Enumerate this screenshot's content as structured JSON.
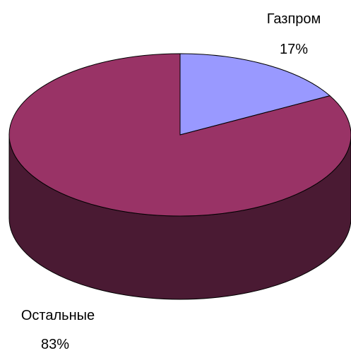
{
  "chart_data": {
    "type": "pie",
    "title": "",
    "slices": [
      {
        "name": "Газпром",
        "value": 17,
        "label": "17%",
        "color": "#9999ff"
      },
      {
        "name": "Остальные",
        "value": 83,
        "label": "83%",
        "color": "#993366"
      }
    ],
    "side_color": "#4a1a33",
    "legend": "none",
    "three_d": true
  }
}
